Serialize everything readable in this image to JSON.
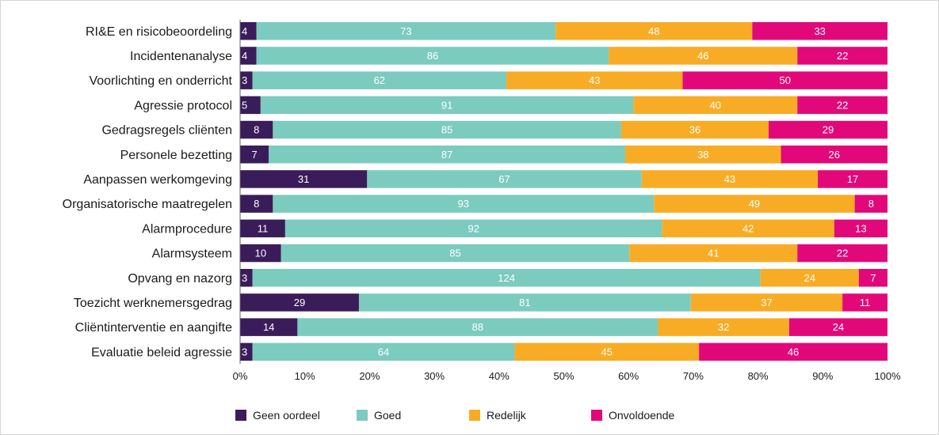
{
  "chart_data": {
    "type": "bar",
    "orientation": "horizontal",
    "stacked": true,
    "normalized": "percent",
    "title": "",
    "xlabel": "",
    "ylabel": "",
    "xlim": [
      0,
      100
    ],
    "x_ticks": [
      "0%",
      "10%",
      "20%",
      "30%",
      "40%",
      "50%",
      "60%",
      "70%",
      "80%",
      "90%",
      "100%"
    ],
    "grid": false,
    "legend_position": "bottom",
    "categories": [
      "RI&E en risicobeoordeling",
      "Incidentenanalyse",
      "Voorlichting en onderricht",
      "Agressie protocol",
      "Gedragsregels cliënten",
      "Personele bezetting",
      "Aanpassen werkomgeving",
      "Organisatorische maatregelen",
      "Alarmprocedure",
      "Alarmsysteem",
      "Opvang en nazorg",
      "Toezicht werknemersgedrag",
      "Cliëntinterventie en aangifte",
      "Evaluatie beleid agressie"
    ],
    "series": [
      {
        "name": "Geen oordeel",
        "color": "#3b1c5a",
        "values": [
          4,
          4,
          3,
          5,
          8,
          7,
          31,
          8,
          11,
          10,
          3,
          29,
          14,
          3
        ]
      },
      {
        "name": "Goed",
        "color": "#7ccbbf",
        "values": [
          73,
          86,
          62,
          91,
          85,
          87,
          67,
          93,
          92,
          85,
          124,
          81,
          88,
          64
        ]
      },
      {
        "name": "Redelijk",
        "color": "#f8ac25",
        "values": [
          48,
          46,
          43,
          40,
          36,
          38,
          43,
          49,
          42,
          41,
          24,
          37,
          32,
          45
        ]
      },
      {
        "name": "Onvoldoende",
        "color": "#e2087a",
        "values": [
          33,
          22,
          50,
          22,
          29,
          26,
          17,
          8,
          13,
          22,
          7,
          11,
          24,
          46
        ]
      }
    ]
  }
}
